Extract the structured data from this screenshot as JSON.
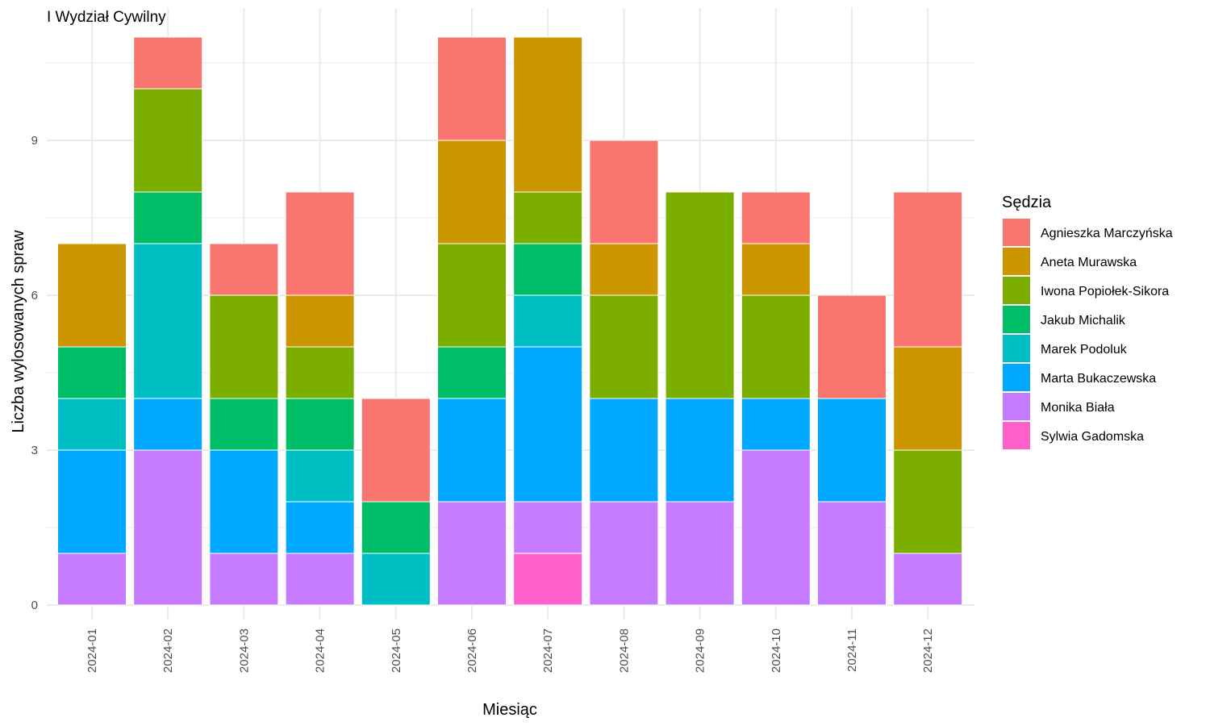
{
  "chart_data": {
    "type": "bar",
    "stacked": true,
    "title": "I Wydział Cywilny",
    "xlabel": "Miesiąc",
    "ylabel": "Liczba wylosowanych spraw",
    "legend_title": "Sędzia",
    "legend_position": "right",
    "ylim": [
      0,
      11.55
    ],
    "yticks": [
      0,
      3,
      6,
      9
    ],
    "grid": true,
    "categories": [
      "2024-01",
      "2024-02",
      "2024-03",
      "2024-04",
      "2024-05",
      "2024-06",
      "2024-07",
      "2024-08",
      "2024-09",
      "2024-10",
      "2024-11",
      "2024-12"
    ],
    "series": [
      {
        "name": "Agnieszka Marczyńska",
        "color": "#F8766D",
        "values": [
          0,
          1,
          1,
          2,
          2,
          2,
          0,
          2,
          0,
          1,
          2,
          3
        ]
      },
      {
        "name": "Aneta Murawska",
        "color": "#CD9600",
        "values": [
          2,
          0,
          0,
          1,
          0,
          2,
          3,
          1,
          0,
          1,
          0,
          2
        ]
      },
      {
        "name": "Iwona Popiołek-Sikora",
        "color": "#7CAE00",
        "values": [
          0,
          2,
          2,
          1,
          0,
          2,
          1,
          2,
          4,
          2,
          0,
          2
        ]
      },
      {
        "name": "Jakub Michalik",
        "color": "#00BE67",
        "values": [
          1,
          1,
          1,
          1,
          1,
          1,
          1,
          0,
          0,
          0,
          0,
          0
        ]
      },
      {
        "name": "Marek Podoluk",
        "color": "#00BFC4",
        "values": [
          1,
          3,
          0,
          1,
          1,
          0,
          1,
          0,
          0,
          0,
          0,
          0
        ]
      },
      {
        "name": "Marta Bukaczewska",
        "color": "#00A9FF",
        "values": [
          2,
          1,
          2,
          1,
          0,
          2,
          3,
          2,
          2,
          1,
          2,
          0
        ]
      },
      {
        "name": "Monika Biała",
        "color": "#C77CFF",
        "values": [
          1,
          3,
          1,
          1,
          0,
          2,
          1,
          2,
          2,
          3,
          2,
          1
        ]
      },
      {
        "name": "Sylwia Gadomska",
        "color": "#FF61CC",
        "values": [
          0,
          0,
          0,
          0,
          0,
          0,
          1,
          0,
          0,
          0,
          0,
          0
        ]
      }
    ]
  }
}
